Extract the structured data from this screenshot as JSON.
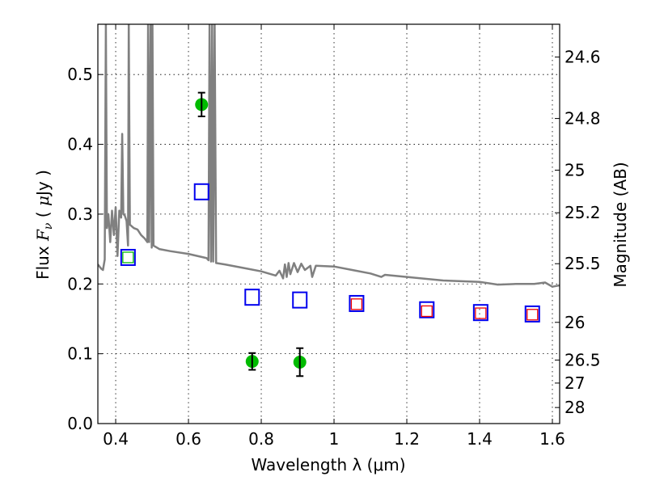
{
  "chart_data": {
    "type": "scatter",
    "title": "",
    "xlabel": "Wavelength  λ (μm)",
    "ylabel_parts": [
      "Flux  ",
      "F",
      "ν",
      "  ( ",
      "μ",
      "Jy )"
    ],
    "ylabel": "Flux  Fν  ( μJy )",
    "y2label": "Magnitude (AB)",
    "xlim": [
      0.351,
      1.62
    ],
    "ylim": [
      0.0,
      0.572
    ],
    "grid": true,
    "x_ticks": [
      {
        "value": 0.4,
        "label": "0.4"
      },
      {
        "value": 0.6,
        "label": "0.6"
      },
      {
        "value": 0.8,
        "label": "0.8"
      },
      {
        "value": 1.0,
        "label": "1"
      },
      {
        "value": 1.2,
        "label": "1.2"
      },
      {
        "value": 1.4,
        "label": "1.4"
      },
      {
        "value": 1.6,
        "label": "1.6"
      }
    ],
    "y_ticks": [
      {
        "value": 0.0,
        "label": "0.0"
      },
      {
        "value": 0.1,
        "label": "0.1"
      },
      {
        "value": 0.2,
        "label": "0.2"
      },
      {
        "value": 0.3,
        "label": "0.3"
      },
      {
        "value": 0.4,
        "label": "0.4"
      },
      {
        "value": 0.5,
        "label": "0.5"
      }
    ],
    "y2_ticks": [
      {
        "flux": 0.525,
        "label": "24.6"
      },
      {
        "flux": 0.437,
        "label": "24.8"
      },
      {
        "flux": 0.363,
        "label": "25"
      },
      {
        "flux": 0.302,
        "label": "25.2"
      },
      {
        "flux": 0.229,
        "label": "25.5"
      },
      {
        "flux": 0.145,
        "label": "26"
      },
      {
        "flux": 0.091,
        "label": "26.5"
      },
      {
        "flux": 0.058,
        "label": "27"
      },
      {
        "flux": 0.023,
        "label": "28"
      }
    ],
    "series": [
      {
        "name": "observed-photometry",
        "marker": "circle",
        "color": "#00bb00",
        "error_color": "#000000",
        "points": [
          {
            "x": 0.636,
            "y": 0.457,
            "yerr": 0.017
          },
          {
            "x": 0.775,
            "y": 0.089,
            "yerr": 0.012
          },
          {
            "x": 0.906,
            "y": 0.088,
            "yerr": 0.02
          }
        ]
      },
      {
        "name": "model-photometry",
        "marker": "square-open",
        "color": "#0000ee",
        "points": [
          {
            "x": 0.434,
            "y": 0.238
          },
          {
            "x": 0.636,
            "y": 0.332
          },
          {
            "x": 0.775,
            "y": 0.181
          },
          {
            "x": 0.906,
            "y": 0.177
          },
          {
            "x": 1.062,
            "y": 0.172
          },
          {
            "x": 1.255,
            "y": 0.163
          },
          {
            "x": 1.403,
            "y": 0.159
          },
          {
            "x": 1.545,
            "y": 0.157
          }
        ]
      },
      {
        "name": "model-photometry-inner-green",
        "marker": "square-open-small",
        "color": "#00bb00",
        "points": [
          {
            "x": 0.434,
            "y": 0.238
          }
        ]
      },
      {
        "name": "model-photometry-inner-red",
        "marker": "square-open-small",
        "color": "#ee0000",
        "points": [
          {
            "x": 1.062,
            "y": 0.171
          },
          {
            "x": 1.255,
            "y": 0.161
          },
          {
            "x": 1.403,
            "y": 0.158
          },
          {
            "x": 1.545,
            "y": 0.156
          }
        ]
      },
      {
        "name": "sed-template-spectrum",
        "marker": "line",
        "color": "#808080",
        "points": [
          {
            "x": 0.351,
            "y": 0.228
          },
          {
            "x": 0.36,
            "y": 0.222
          },
          {
            "x": 0.365,
            "y": 0.22
          },
          {
            "x": 0.37,
            "y": 0.235
          },
          {
            "x": 0.373,
            "y": 0.572
          },
          {
            "x": 0.376,
            "y": 0.28
          },
          {
            "x": 0.38,
            "y": 0.3
          },
          {
            "x": 0.385,
            "y": 0.26
          },
          {
            "x": 0.39,
            "y": 0.305
          },
          {
            "x": 0.395,
            "y": 0.27
          },
          {
            "x": 0.4,
            "y": 0.31
          },
          {
            "x": 0.405,
            "y": 0.24
          },
          {
            "x": 0.41,
            "y": 0.305
          },
          {
            "x": 0.415,
            "y": 0.295
          },
          {
            "x": 0.418,
            "y": 0.415
          },
          {
            "x": 0.421,
            "y": 0.3
          },
          {
            "x": 0.425,
            "y": 0.298
          },
          {
            "x": 0.43,
            "y": 0.29
          },
          {
            "x": 0.434,
            "y": 0.255
          },
          {
            "x": 0.436,
            "y": 0.572
          },
          {
            "x": 0.439,
            "y": 0.285
          },
          {
            "x": 0.45,
            "y": 0.28
          },
          {
            "x": 0.46,
            "y": 0.278
          },
          {
            "x": 0.47,
            "y": 0.27
          },
          {
            "x": 0.48,
            "y": 0.265
          },
          {
            "x": 0.487,
            "y": 0.26
          },
          {
            "x": 0.489,
            "y": 0.572
          },
          {
            "x": 0.492,
            "y": 0.26
          },
          {
            "x": 0.496,
            "y": 0.572
          },
          {
            "x": 0.499,
            "y": 0.252
          },
          {
            "x": 0.501,
            "y": 0.572
          },
          {
            "x": 0.504,
            "y": 0.255
          },
          {
            "x": 0.52,
            "y": 0.25
          },
          {
            "x": 0.55,
            "y": 0.247
          },
          {
            "x": 0.6,
            "y": 0.243
          },
          {
            "x": 0.65,
            "y": 0.237
          },
          {
            "x": 0.655,
            "y": 0.234
          },
          {
            "x": 0.658,
            "y": 0.572
          },
          {
            "x": 0.662,
            "y": 0.232
          },
          {
            "x": 0.665,
            "y": 0.572
          },
          {
            "x": 0.668,
            "y": 0.232
          },
          {
            "x": 0.672,
            "y": 0.572
          },
          {
            "x": 0.676,
            "y": 0.23
          },
          {
            "x": 0.7,
            "y": 0.228
          },
          {
            "x": 0.75,
            "y": 0.223
          },
          {
            "x": 0.8,
            "y": 0.218
          },
          {
            "x": 0.82,
            "y": 0.215
          },
          {
            "x": 0.84,
            "y": 0.212
          },
          {
            "x": 0.85,
            "y": 0.219
          },
          {
            "x": 0.86,
            "y": 0.208
          },
          {
            "x": 0.865,
            "y": 0.228
          },
          {
            "x": 0.87,
            "y": 0.21
          },
          {
            "x": 0.875,
            "y": 0.23
          },
          {
            "x": 0.88,
            "y": 0.214
          },
          {
            "x": 0.89,
            "y": 0.23
          },
          {
            "x": 0.9,
            "y": 0.217
          },
          {
            "x": 0.91,
            "y": 0.229
          },
          {
            "x": 0.92,
            "y": 0.22
          },
          {
            "x": 0.935,
            "y": 0.226
          },
          {
            "x": 0.94,
            "y": 0.21
          },
          {
            "x": 0.95,
            "y": 0.226
          },
          {
            "x": 1.0,
            "y": 0.225
          },
          {
            "x": 1.05,
            "y": 0.22
          },
          {
            "x": 1.1,
            "y": 0.215
          },
          {
            "x": 1.13,
            "y": 0.21
          },
          {
            "x": 1.14,
            "y": 0.213
          },
          {
            "x": 1.2,
            "y": 0.21
          },
          {
            "x": 1.3,
            "y": 0.205
          },
          {
            "x": 1.4,
            "y": 0.203
          },
          {
            "x": 1.45,
            "y": 0.199
          },
          {
            "x": 1.5,
            "y": 0.2
          },
          {
            "x": 1.55,
            "y": 0.2
          },
          {
            "x": 1.58,
            "y": 0.202
          },
          {
            "x": 1.6,
            "y": 0.196
          },
          {
            "x": 1.62,
            "y": 0.198
          }
        ]
      }
    ]
  }
}
